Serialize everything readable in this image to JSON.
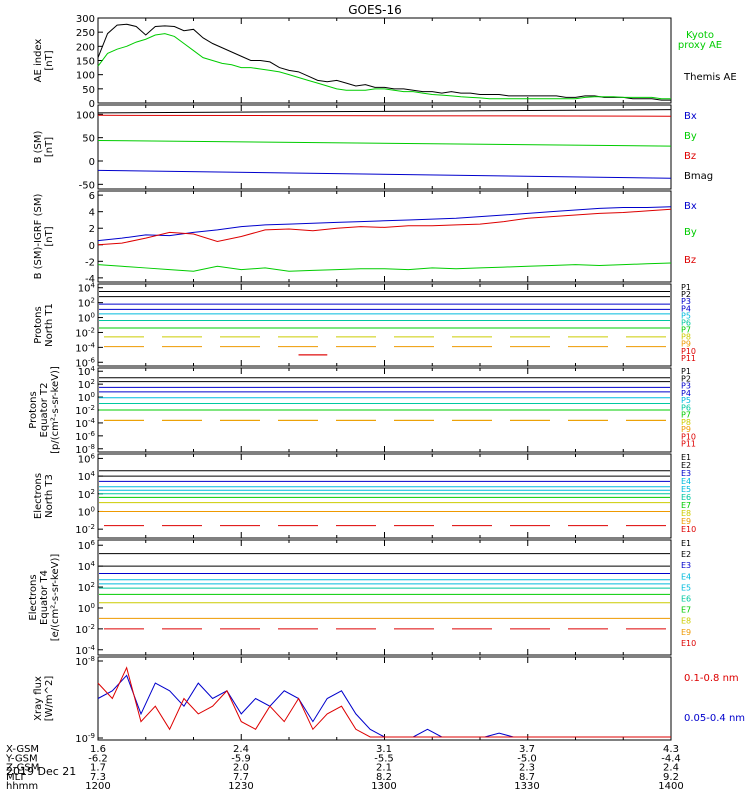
{
  "title": "GOES-16",
  "date": "2019 Dec 21",
  "colors": {
    "black": "#000000",
    "red": "#dd0000",
    "green": "#00cc00",
    "blue": "#0000cc",
    "p_cyan": "#00bbdd",
    "p_teal": "#00c8a0",
    "p_yellow": "#cccc00",
    "p_orange": "#ee9900"
  },
  "orbit_table": {
    "rows": [
      {
        "label": "X-GSM",
        "values": [
          "1.6",
          "2.4",
          "3.1",
          "3.7",
          "4.3"
        ]
      },
      {
        "label": "Y-GSM",
        "values": [
          "-6.2",
          "-5.9",
          "-5.5",
          "-5.0",
          "-4.4"
        ]
      },
      {
        "label": "Z-GSM",
        "values": [
          "1.7",
          "2.0",
          "2.1",
          "2.3",
          "2.4"
        ]
      },
      {
        "label": "MLT",
        "values": [
          "7.3",
          "7.7",
          "8.2",
          "8.7",
          "9.2"
        ]
      },
      {
        "label": "hhmm",
        "values": [
          "1200",
          "1230",
          "1300",
          "1330",
          "1400"
        ]
      }
    ]
  },
  "chart_data": [
    {
      "type": "line",
      "panel": "ae",
      "ylabel": [
        "AE index",
        "[nT]"
      ],
      "yticks": [
        "300",
        "250",
        "200",
        "150",
        "100",
        "50",
        "0"
      ],
      "ylim": [
        0,
        300
      ],
      "legend": [
        {
          "name": "Kyoto",
          "color": "#00cc00"
        },
        {
          "name": "proxy AE",
          "color": "#00cc00"
        },
        {
          "name": "Themis AE",
          "color": "#000000"
        }
      ],
      "x": [
        0,
        2,
        4,
        6,
        8,
        10,
        12,
        14,
        16,
        18,
        20,
        22,
        24,
        26,
        28,
        30,
        32,
        34,
        36,
        38,
        40,
        42,
        44,
        46,
        48,
        50,
        52,
        54,
        56,
        58,
        60,
        62,
        64,
        66,
        68,
        70,
        72,
        74,
        76,
        78,
        80,
        82,
        84,
        86,
        88,
        90,
        92,
        94,
        96,
        98,
        100,
        102,
        104,
        106,
        108,
        110,
        112,
        114,
        116,
        118,
        120
      ],
      "series": [
        {
          "name": "Themis AE",
          "color": "#000000",
          "values": [
            160,
            245,
            275,
            278,
            270,
            240,
            270,
            272,
            270,
            255,
            260,
            230,
            210,
            195,
            180,
            165,
            150,
            150,
            145,
            125,
            115,
            110,
            95,
            80,
            75,
            80,
            70,
            60,
            65,
            55,
            55,
            50,
            50,
            45,
            40,
            40,
            35,
            40,
            35,
            35,
            30,
            30,
            30,
            25,
            25,
            25,
            25,
            25,
            25,
            20,
            20,
            25,
            25,
            20,
            20,
            20,
            15,
            15,
            15,
            10,
            10
          ]
        },
        {
          "name": "proxy AE",
          "color": "#00cc00",
          "values": [
            130,
            175,
            190,
            200,
            215,
            225,
            240,
            245,
            235,
            210,
            185,
            160,
            150,
            140,
            135,
            125,
            125,
            120,
            115,
            110,
            100,
            90,
            80,
            70,
            60,
            50,
            45,
            45,
            45,
            50,
            50,
            45,
            40,
            40,
            35,
            30,
            28,
            25,
            22,
            20,
            18,
            15,
            15,
            15,
            15,
            15,
            15,
            15,
            15,
            15,
            15,
            20,
            22,
            22,
            22,
            20,
            20,
            20,
            20,
            15,
            15
          ]
        }
      ]
    },
    {
      "type": "line",
      "panel": "bsm",
      "ylabel": [
        "B (SM)",
        "[nT]"
      ],
      "yticks": [
        "100",
        "50",
        "0",
        "-50"
      ],
      "ylim": [
        -60,
        120
      ],
      "legend": [
        {
          "name": "Bx",
          "color": "#0000cc"
        },
        {
          "name": "By",
          "color": "#00cc00"
        },
        {
          "name": "Bz",
          "color": "#dd0000"
        },
        {
          "name": "Bmag",
          "color": "#000000"
        }
      ],
      "x": [
        0,
        120
      ],
      "series": [
        {
          "name": "Bmag",
          "color": "#000000",
          "values": [
            103,
            110
          ]
        },
        {
          "name": "Bz",
          "color": "#dd0000",
          "values": [
            98,
            96
          ]
        },
        {
          "name": "By",
          "color": "#00cc00",
          "values": [
            44,
            32
          ]
        },
        {
          "name": "Bx",
          "color": "#0000cc",
          "values": [
            -20,
            -37
          ]
        }
      ]
    },
    {
      "type": "line",
      "panel": "bdiff",
      "ylabel": [
        "B (SM)-IGRF (SM)",
        "[nT]"
      ],
      "yticks": [
        "6",
        "4",
        "2",
        "0",
        "-2",
        "-4"
      ],
      "ylim": [
        -4.5,
        6.5
      ],
      "legend": [
        {
          "name": "Bx",
          "color": "#0000cc"
        },
        {
          "name": "By",
          "color": "#00cc00"
        },
        {
          "name": "Bz",
          "color": "#dd0000"
        }
      ],
      "x": [
        0,
        5,
        10,
        15,
        20,
        25,
        30,
        35,
        40,
        45,
        50,
        55,
        60,
        65,
        70,
        75,
        80,
        85,
        90,
        95,
        100,
        105,
        110,
        115,
        120
      ],
      "series": [
        {
          "name": "Bx",
          "color": "#0000cc",
          "values": [
            0.5,
            0.8,
            1.2,
            1.1,
            1.5,
            1.8,
            2.2,
            2.4,
            2.5,
            2.6,
            2.7,
            2.8,
            2.9,
            3.0,
            3.1,
            3.2,
            3.4,
            3.6,
            3.8,
            4.0,
            4.2,
            4.4,
            4.5,
            4.5,
            4.6
          ]
        },
        {
          "name": "Bz",
          "color": "#dd0000",
          "values": [
            0.0,
            0.2,
            0.8,
            1.5,
            1.3,
            0.4,
            1.0,
            1.8,
            1.9,
            1.7,
            2.0,
            2.2,
            2.1,
            2.3,
            2.3,
            2.4,
            2.5,
            2.8,
            3.2,
            3.4,
            3.6,
            3.8,
            3.9,
            4.1,
            4.3
          ]
        },
        {
          "name": "By",
          "color": "#00cc00",
          "values": [
            -2.4,
            -2.6,
            -2.8,
            -3.0,
            -3.2,
            -2.6,
            -3.0,
            -2.8,
            -3.2,
            -3.1,
            -3.0,
            -2.9,
            -2.9,
            -3.0,
            -2.8,
            -2.9,
            -2.8,
            -2.7,
            -2.6,
            -2.5,
            -2.4,
            -2.5,
            -2.4,
            -2.3,
            -2.2
          ]
        }
      ]
    },
    {
      "type": "line",
      "panel": "pn",
      "scale": "log",
      "ylabel": [
        "Protons",
        "North T1"
      ],
      "yticks": [
        "10^4",
        "10^2",
        "10^0",
        "10^-2",
        "10^-4",
        "10^-6"
      ],
      "ylim_exp": [
        -6.5,
        4.5
      ],
      "channels": [
        {
          "name": "P1",
          "color": "#000000",
          "level": 3.5
        },
        {
          "name": "P2",
          "color": "#000000",
          "level": 2.8
        },
        {
          "name": "P3",
          "color": "#0000cc",
          "level": 1.8
        },
        {
          "name": "P4",
          "color": "#0000cc",
          "level": 1.1
        },
        {
          "name": "P5",
          "color": "#00bbdd",
          "level": 0.5
        },
        {
          "name": "P6",
          "color": "#00c8a0",
          "level": -0.4
        },
        {
          "name": "P7",
          "color": "#00cc00",
          "level": -1.4
        },
        {
          "name": "P8",
          "color": "#cccc00",
          "level": -2.6
        },
        {
          "name": "P9",
          "color": "#ee9900",
          "level": -3.9
        },
        {
          "name": "P10",
          "color": "#dd0000",
          "level": -4.8
        },
        {
          "name": "P11",
          "color": "#dd0000",
          "level": -4.8
        }
      ]
    },
    {
      "type": "line",
      "panel": "pe",
      "scale": "log",
      "ylabel": [
        "Protons",
        "Equator T2",
        "[p/(cm²-s-sr-keV)]"
      ],
      "yticks": [
        "10^4",
        "10^2",
        "10^0",
        "10^-2",
        "10^-4",
        "10^-6",
        "10^-8"
      ],
      "ylim_exp": [
        -8.5,
        4.5
      ],
      "channels": [
        {
          "name": "P1",
          "color": "#000000",
          "level": 3.0
        },
        {
          "name": "P2",
          "color": "#000000",
          "level": 2.4
        },
        {
          "name": "P3",
          "color": "#0000cc",
          "level": 1.5
        },
        {
          "name": "P4",
          "color": "#0000cc",
          "level": 0.8
        },
        {
          "name": "P5",
          "color": "#00bbdd",
          "level": -0.1
        },
        {
          "name": "P6",
          "color": "#00c8a0",
          "level": -1.0
        },
        {
          "name": "P7",
          "color": "#00cc00",
          "level": -2.0
        },
        {
          "name": "P8",
          "color": "#cccc00",
          "level": -3.6
        },
        {
          "name": "P9",
          "color": "#ee9900",
          "level": -3.6
        },
        {
          "name": "P10",
          "color": "#dd0000",
          "level": -8.0
        },
        {
          "name": "P11",
          "color": "#dd0000",
          "level": -8.0
        }
      ]
    },
    {
      "type": "line",
      "panel": "en",
      "scale": "log",
      "ylabel": [
        "Electrons",
        "North T3"
      ],
      "yticks": [
        "10^6",
        "10^4",
        "10^2",
        "10^0",
        "10^-2"
      ],
      "ylim_exp": [
        -3,
        6.5
      ],
      "channels": [
        {
          "name": "E1",
          "color": "#000000",
          "level": 4.6
        },
        {
          "name": "E2",
          "color": "#000000",
          "level": 4.0
        },
        {
          "name": "E3",
          "color": "#0000cc",
          "level": 3.4
        },
        {
          "name": "E4",
          "color": "#00bbdd",
          "level": 2.8
        },
        {
          "name": "E5",
          "color": "#00bbdd",
          "level": 2.4
        },
        {
          "name": "E6",
          "color": "#00c8a0",
          "level": 2.0
        },
        {
          "name": "E7",
          "color": "#00cc00",
          "level": 1.6
        },
        {
          "name": "E8",
          "color": "#cccc00",
          "level": 1.0
        },
        {
          "name": "E9",
          "color": "#ee9900",
          "level": 0.0
        },
        {
          "name": "E10",
          "color": "#dd0000",
          "level": -1.6
        }
      ]
    },
    {
      "type": "line",
      "panel": "ee",
      "scale": "log",
      "ylabel": [
        "Electrons",
        "Equator T4",
        "[e/(cm²-s-sr-keV)]"
      ],
      "yticks": [
        "10^6",
        "10^4",
        "10^2",
        "10^0",
        "10^-2",
        "10^-4"
      ],
      "ylim_exp": [
        -4.5,
        6.5
      ],
      "channels": [
        {
          "name": "E1",
          "color": "#000000",
          "level": 5.2
        },
        {
          "name": "E2",
          "color": "#000000",
          "level": 4.0
        },
        {
          "name": "E3",
          "color": "#0000cc",
          "level": 3.3
        },
        {
          "name": "E4",
          "color": "#00bbdd",
          "level": 2.7
        },
        {
          "name": "E5",
          "color": "#00bbdd",
          "level": 2.3
        },
        {
          "name": "E6",
          "color": "#00c8a0",
          "level": 1.9
        },
        {
          "name": "E7",
          "color": "#00cc00",
          "level": 1.3
        },
        {
          "name": "E8",
          "color": "#cccc00",
          "level": 0.5
        },
        {
          "name": "E9",
          "color": "#ee9900",
          "level": -1.0
        },
        {
          "name": "E10",
          "color": "#dd0000",
          "level": -2.0
        }
      ]
    },
    {
      "type": "line",
      "panel": "xray",
      "scale": "log",
      "ylabel": [
        "Xray flux",
        "[W/m^2]"
      ],
      "yticks": [
        "10^-8",
        "10^-9"
      ],
      "legend": [
        {
          "name": "0.1-0.8 nm",
          "color": "#dd0000"
        },
        {
          "name": "0.05-0.4 nm",
          "color": "#0000cc"
        }
      ],
      "x": [
        0,
        3,
        6,
        9,
        12,
        15,
        18,
        21,
        24,
        27,
        30,
        33,
        36,
        39,
        42,
        45,
        48,
        51,
        54,
        57,
        60,
        63,
        66,
        69,
        72,
        75,
        78,
        81,
        84,
        87,
        90,
        93,
        96,
        99,
        102,
        105,
        108,
        111,
        114,
        117,
        120
      ],
      "series": [
        {
          "name": "0.05-0.4 nm",
          "color": "#0000cc",
          "values": [
            0.5,
            0.6,
            0.8,
            0.3,
            0.7,
            0.6,
            0.4,
            0.7,
            0.5,
            0.6,
            0.3,
            0.5,
            0.4,
            0.6,
            0.5,
            0.2,
            0.5,
            0.6,
            0.3,
            0.1,
            0.0,
            0.0,
            0.0,
            0.1,
            0.0,
            0.0,
            0.0,
            0.0,
            0.05,
            0.0,
            0.0,
            0.0,
            0.0,
            0.0,
            0.0,
            0.0,
            0.0,
            0.0,
            0.0,
            0.0,
            0.0
          ]
        },
        {
          "name": "0.1-0.8 nm",
          "color": "#dd0000",
          "values": [
            0.7,
            0.5,
            0.9,
            0.2,
            0.4,
            0.1,
            0.5,
            0.3,
            0.4,
            0.6,
            0.2,
            0.1,
            0.4,
            0.2,
            0.5,
            0.1,
            0.3,
            0.4,
            0.1,
            0.0,
            0.0,
            0.0,
            0.0,
            0.0,
            0.0,
            0.0,
            0.0,
            0.0,
            0.0,
            0.0,
            0.0,
            0.0,
            0.0,
            0.0,
            0.0,
            0.0,
            0.0,
            0.0,
            0.0,
            0.0,
            0.0
          ]
        }
      ]
    }
  ]
}
